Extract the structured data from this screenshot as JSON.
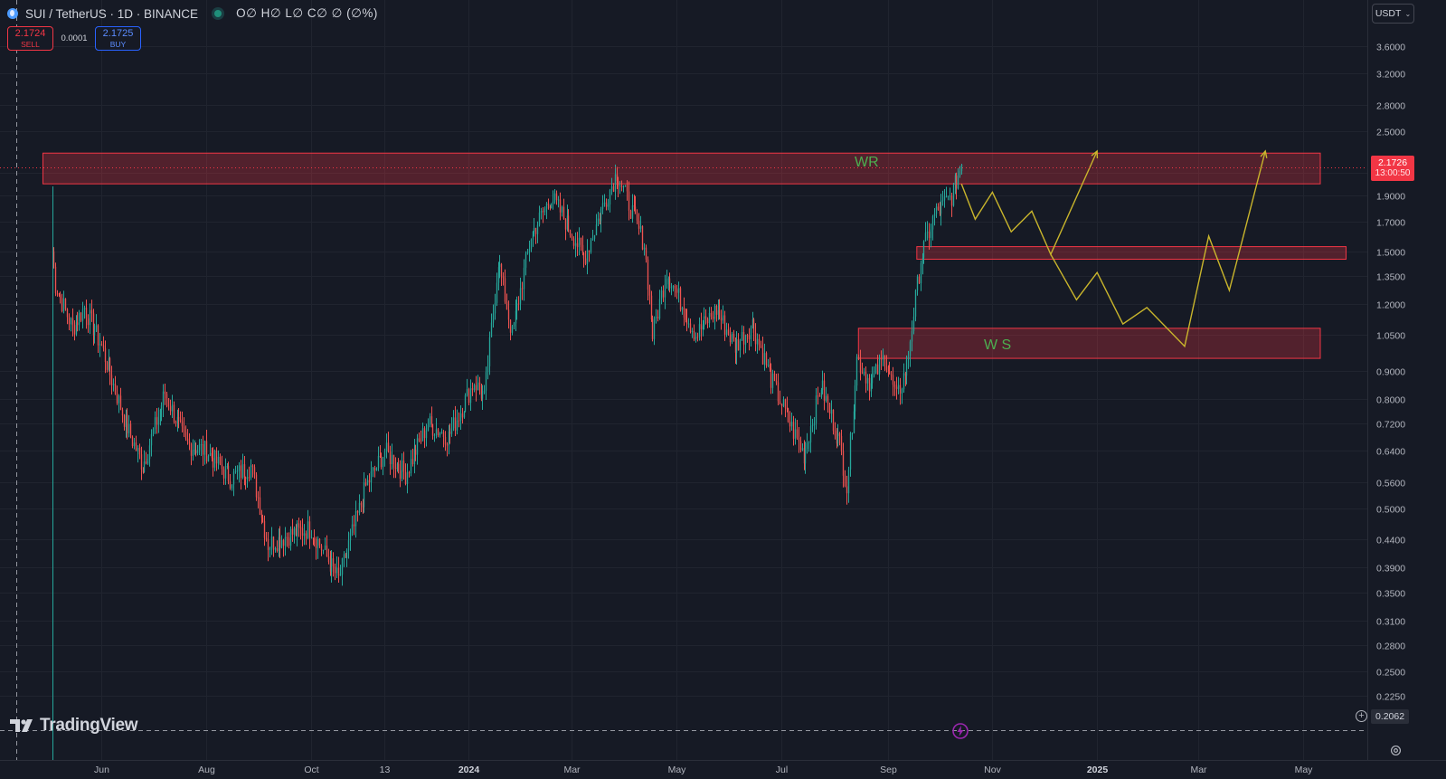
{
  "header": {
    "symbol": "SUI / TetherUS · 1D · BINANCE",
    "ohlc": "O∅ H∅ L∅ C∅ ∅ (∅%)",
    "symbol_icon": "sui-logo-icon",
    "live_icon": "market-open-dot-icon"
  },
  "trade": {
    "sell_price": "2.1724",
    "sell_label": "SELL",
    "spread": "0.0001",
    "buy_price": "2.1725",
    "buy_label": "BUY"
  },
  "currency": {
    "label": "USDT",
    "icon": "chevron-down-icon"
  },
  "last_price": {
    "value": "2.1726",
    "countdown": "13:00:50"
  },
  "crosshair_price": "0.2062",
  "brand": {
    "name": "TradingView",
    "icon": "tradingview-logo-icon"
  },
  "zones": {
    "wr_label": "WR",
    "ws_label": "W S"
  },
  "colors": {
    "background": "#161a25",
    "up": "#26a69a",
    "down": "#ef5350",
    "zone_border": "#f23645",
    "projection": "#c9b52c",
    "zone_text": "#4caf50"
  },
  "chart_data": {
    "type": "candlestick",
    "scale": "log",
    "ylim": [
      0.2,
      3.95
    ],
    "y_tick_labels": [
      "3.6000",
      "3.2000",
      "2.8000",
      "2.5000",
      "2.1000",
      "1.9000",
      "1.7000",
      "1.5000",
      "1.3500",
      "1.2000",
      "1.0500",
      "0.9000",
      "0.8000",
      "0.7200",
      "0.6400",
      "0.5600",
      "0.5000",
      "0.4400",
      "0.3900",
      "0.3500",
      "0.3100",
      "0.2800",
      "0.2500",
      "0.2250"
    ],
    "y_tick_values": [
      3.6,
      3.2,
      2.8,
      2.5,
      2.1,
      1.9,
      1.7,
      1.5,
      1.35,
      1.2,
      1.05,
      0.9,
      0.8,
      0.72,
      0.64,
      0.56,
      0.5,
      0.44,
      0.39,
      0.35,
      0.31,
      0.28,
      0.25,
      0.225
    ],
    "x_tick_labels": [
      "Jun",
      "Aug",
      "Oct",
      "13",
      "2024",
      "Mar",
      "May",
      "Jul",
      "Sep",
      "Nov",
      "2025",
      "Mar",
      "May"
    ],
    "x_tick_dates": [
      "2023-06-01",
      "2023-08-01",
      "2023-10-01",
      "2023-11-13",
      "2024-01-01",
      "2024-03-01",
      "2024-05-01",
      "2024-07-01",
      "2024-09-01",
      "2024-11-01",
      "2025-01-01",
      "2025-03-01",
      "2025-05-01"
    ],
    "path_keypoints": [
      {
        "date": "2023-05-03",
        "price": 1.5
      },
      {
        "date": "2023-05-05",
        "price": 1.3
      },
      {
        "date": "2023-05-15",
        "price": 1.08
      },
      {
        "date": "2023-05-22",
        "price": 1.18
      },
      {
        "date": "2023-06-01",
        "price": 1.0
      },
      {
        "date": "2023-06-15",
        "price": 0.72
      },
      {
        "date": "2023-06-25",
        "price": 0.6
      },
      {
        "date": "2023-07-08",
        "price": 0.82
      },
      {
        "date": "2023-07-20",
        "price": 0.66
      },
      {
        "date": "2023-08-01",
        "price": 0.64
      },
      {
        "date": "2023-08-15",
        "price": 0.57
      },
      {
        "date": "2023-08-27",
        "price": 0.6
      },
      {
        "date": "2023-09-06",
        "price": 0.43
      },
      {
        "date": "2023-09-20",
        "price": 0.45
      },
      {
        "date": "2023-10-01",
        "price": 0.46
      },
      {
        "date": "2023-10-17",
        "price": 0.37
      },
      {
        "date": "2023-11-02",
        "price": 0.55
      },
      {
        "date": "2023-11-13",
        "price": 0.64
      },
      {
        "date": "2023-11-25",
        "price": 0.58
      },
      {
        "date": "2023-12-08",
        "price": 0.72
      },
      {
        "date": "2023-12-20",
        "price": 0.68
      },
      {
        "date": "2024-01-04",
        "price": 0.86
      },
      {
        "date": "2024-01-10",
        "price": 0.8
      },
      {
        "date": "2024-01-18",
        "price": 1.45
      },
      {
        "date": "2024-01-26",
        "price": 1.05
      },
      {
        "date": "2024-02-06",
        "price": 1.6
      },
      {
        "date": "2024-02-18",
        "price": 1.9
      },
      {
        "date": "2024-03-02",
        "price": 1.6
      },
      {
        "date": "2024-03-08",
        "price": 1.45
      },
      {
        "date": "2024-03-17",
        "price": 1.75
      },
      {
        "date": "2024-03-27",
        "price": 2.1
      },
      {
        "date": "2024-04-12",
        "price": 1.55
      },
      {
        "date": "2024-04-17",
        "price": 1.05
      },
      {
        "date": "2024-04-25",
        "price": 1.38
      },
      {
        "date": "2024-05-12",
        "price": 1.05
      },
      {
        "date": "2024-05-24",
        "price": 1.17
      },
      {
        "date": "2024-06-04",
        "price": 1.0
      },
      {
        "date": "2024-06-14",
        "price": 1.1
      },
      {
        "date": "2024-06-25",
        "price": 0.87
      },
      {
        "date": "2024-07-05",
        "price": 0.73
      },
      {
        "date": "2024-07-14",
        "price": 0.63
      },
      {
        "date": "2024-07-24",
        "price": 0.85
      },
      {
        "date": "2024-08-04",
        "price": 0.66
      },
      {
        "date": "2024-08-08",
        "price": 0.55
      },
      {
        "date": "2024-08-14",
        "price": 0.95
      },
      {
        "date": "2024-08-22",
        "price": 0.85
      },
      {
        "date": "2024-08-30",
        "price": 0.96
      },
      {
        "date": "2024-09-06",
        "price": 0.8
      },
      {
        "date": "2024-09-12",
        "price": 0.92
      },
      {
        "date": "2024-09-20",
        "price": 1.45
      },
      {
        "date": "2024-09-28",
        "price": 1.75
      },
      {
        "date": "2024-10-08",
        "price": 1.9
      },
      {
        "date": "2024-10-14",
        "price": 2.17
      }
    ],
    "projection_1": [
      {
        "date": "2024-10-14",
        "price": 2.0
      },
      {
        "date": "2024-10-22",
        "price": 1.72
      },
      {
        "date": "2024-11-01",
        "price": 1.93
      },
      {
        "date": "2024-11-12",
        "price": 1.63
      },
      {
        "date": "2024-11-24",
        "price": 1.78
      },
      {
        "date": "2024-12-05",
        "price": 1.48
      },
      {
        "date": "2025-01-01",
        "price": 2.3
      }
    ],
    "projection_2": [
      {
        "date": "2024-12-05",
        "price": 1.48
      },
      {
        "date": "2024-12-20",
        "price": 1.22
      },
      {
        "date": "2025-01-01",
        "price": 1.37
      },
      {
        "date": "2025-01-16",
        "price": 1.1
      },
      {
        "date": "2025-01-30",
        "price": 1.18
      },
      {
        "date": "2025-02-21",
        "price": 1.0
      },
      {
        "date": "2025-03-07",
        "price": 1.6
      },
      {
        "date": "2025-03-19",
        "price": 1.27
      },
      {
        "date": "2025-04-09",
        "price": 2.3
      }
    ],
    "zones_data": [
      {
        "label": "WR",
        "from": "2023-04-28",
        "to": "2025-05-11",
        "low": 2.0,
        "high": 2.28
      },
      {
        "label": "",
        "from": "2024-09-18",
        "to": "2025-05-26",
        "low": 1.45,
        "high": 1.53
      },
      {
        "label": "W S",
        "from": "2024-08-15",
        "to": "2025-05-11",
        "low": 0.95,
        "high": 1.08
      }
    ],
    "last_price": 2.1726
  }
}
